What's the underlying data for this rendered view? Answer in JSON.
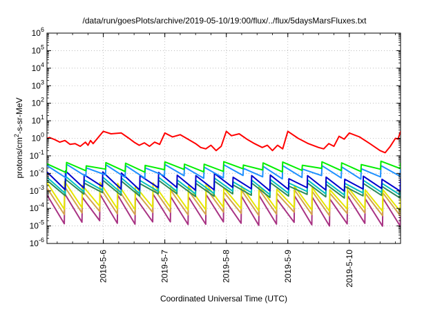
{
  "chart_data": {
    "type": "line",
    "title": "/data/run/goesPlots/archive/2019-05-10/19:00/flux/../flux/5daysMarsFluxes.txt",
    "xlabel": "Coordinated Universal Time (UTC)",
    "ylabel": {
      "prefix": "protons/cm",
      "sup": "2",
      "suffix": "-s-sr-MeV"
    },
    "yscale": "log",
    "ylim": [
      1e-06,
      1000000.0
    ],
    "y_ticks": [
      {
        "value": 1e-06,
        "base": "10",
        "exp": "-6"
      },
      {
        "value": 1e-05,
        "base": "10",
        "exp": "-5"
      },
      {
        "value": 0.0001,
        "base": "10",
        "exp": "-4"
      },
      {
        "value": 0.001,
        "base": "10",
        "exp": "-3"
      },
      {
        "value": 0.01,
        "base": "10",
        "exp": "-2"
      },
      {
        "value": 0.1,
        "base": "10",
        "exp": "-1"
      },
      {
        "value": 1.0,
        "base": "10",
        "exp": "0"
      },
      {
        "value": 10.0,
        "base": "10",
        "exp": "1"
      },
      {
        "value": 100.0,
        "base": "10",
        "exp": "2"
      },
      {
        "value": 1000.0,
        "base": "10",
        "exp": "3"
      },
      {
        "value": 10000.0,
        "base": "10",
        "exp": "4"
      },
      {
        "value": 100000.0,
        "base": "10",
        "exp": "5"
      },
      {
        "value": 1000000.0,
        "base": "10",
        "exp": "6"
      }
    ],
    "xlim": [
      "2019-05-05 02:00",
      "2019-05-10 20:00"
    ],
    "x_ticks": [
      {
        "value": "2019-05-06 00:00",
        "label": "2019-5-6"
      },
      {
        "value": "2019-05-07 00:00",
        "label": "2019-5-7"
      },
      {
        "value": "2019-05-08 00:00",
        "label": "2019-5-8"
      },
      {
        "value": "2019-05-09 00:00",
        "label": "2019-5-9"
      },
      {
        "value": "2019-05-10 00:00",
        "label": "2019-5-10"
      }
    ],
    "grid": true,
    "series": [
      {
        "color": "#ff0000",
        "x": [
          "2019-05-05 02:00",
          "2019-05-05 03:00",
          "2019-05-05 05:00",
          "2019-05-05 07:00",
          "2019-05-05 09:00",
          "2019-05-05 11:00",
          "2019-05-05 13:00",
          "2019-05-05 15:00",
          "2019-05-05 17:00",
          "2019-05-05 18:00",
          "2019-05-05 19:00",
          "2019-05-05 20:00",
          "2019-05-06 00:00",
          "2019-05-06 03:00",
          "2019-05-06 07:00",
          "2019-05-06 10:00",
          "2019-05-06 12:00",
          "2019-05-06 14:00",
          "2019-05-06 16:00",
          "2019-05-06 18:00",
          "2019-05-06 20:00",
          "2019-05-06 22:00",
          "2019-05-07 00:00",
          "2019-05-07 03:00",
          "2019-05-07 06:00",
          "2019-05-07 09:00",
          "2019-05-07 12:00",
          "2019-05-07 14:00",
          "2019-05-07 16:00",
          "2019-05-07 18:00",
          "2019-05-07 20:00",
          "2019-05-07 22:00",
          "2019-05-08 00:00",
          "2019-05-08 02:00",
          "2019-05-08 05:00",
          "2019-05-08 08:00",
          "2019-05-08 11:00",
          "2019-05-08 14:00",
          "2019-05-08 16:00",
          "2019-05-08 18:00",
          "2019-05-08 20:00",
          "2019-05-08 22:00",
          "2019-05-09 00:00",
          "2019-05-09 04:00",
          "2019-05-09 08:00",
          "2019-05-09 12:00",
          "2019-05-09 14:00",
          "2019-05-09 16:00",
          "2019-05-09 18:00",
          "2019-05-09 20:00",
          "2019-05-09 22:00",
          "2019-05-10 00:00",
          "2019-05-10 04:00",
          "2019-05-10 08:00",
          "2019-05-10 12:00",
          "2019-05-10 14:00",
          "2019-05-10 16:00",
          "2019-05-10 18:00",
          "2019-05-10 19:00",
          "2019-05-10 20:00"
        ],
        "y": [
          1.0,
          1.1,
          0.85,
          0.6,
          0.75,
          0.45,
          0.5,
          0.35,
          0.6,
          0.4,
          0.75,
          0.5,
          2.5,
          1.8,
          2.0,
          1.0,
          0.6,
          0.4,
          0.55,
          0.35,
          0.6,
          0.45,
          2.0,
          1.2,
          1.6,
          0.9,
          0.5,
          0.3,
          0.25,
          0.4,
          0.2,
          0.35,
          2.5,
          1.4,
          1.8,
          0.9,
          0.5,
          0.3,
          0.4,
          0.2,
          0.4,
          0.25,
          2.5,
          1.0,
          0.5,
          0.3,
          0.25,
          0.5,
          0.35,
          1.3,
          0.9,
          2.0,
          1.2,
          0.5,
          0.2,
          0.15,
          0.35,
          1.0,
          0.9,
          2.5
        ]
      },
      {
        "color": "#00ee00",
        "sawtooth": {
          "peak": [
            0.035,
            0.04
          ],
          "trough": [
            0.012,
            0.014
          ],
          "cycles": 18
        }
      },
      {
        "color": "#1e90ff",
        "sawtooth": {
          "peak": [
            0.028,
            0.022
          ],
          "trough": [
            0.006,
            0.005
          ],
          "cycles": 18
        }
      },
      {
        "color": "#0000cd",
        "sawtooth": {
          "peak": [
            0.012,
            0.005
          ],
          "trough": [
            0.0013,
            0.001
          ],
          "cycles": 19
        }
      },
      {
        "color": "#00bfbf",
        "sawtooth": {
          "peak": [
            0.006,
            0.003
          ],
          "trough": [
            0.0008,
            0.0006
          ],
          "cycles": 19
        }
      },
      {
        "color": "#2e8b57",
        "sawtooth": {
          "peak": [
            0.004,
            0.002
          ],
          "trough": [
            0.0006,
            0.0004
          ],
          "cycles": 19
        }
      },
      {
        "color": "#e6e600",
        "sawtooth": {
          "peak": [
            0.003,
            0.0012
          ],
          "trough": [
            0.0001,
            7e-05
          ],
          "cycles": 20
        }
      },
      {
        "color": "#d4a24c",
        "sawtooth": {
          "peak": [
            0.0015,
            0.0008
          ],
          "trough": [
            5e-05,
            4e-05
          ],
          "cycles": 20
        }
      },
      {
        "color": "#a83283",
        "sawtooth": {
          "peak": [
            0.0006,
            0.0004
          ],
          "trough": [
            1.5e-05,
            1e-05
          ],
          "cycles": 20
        }
      }
    ]
  }
}
